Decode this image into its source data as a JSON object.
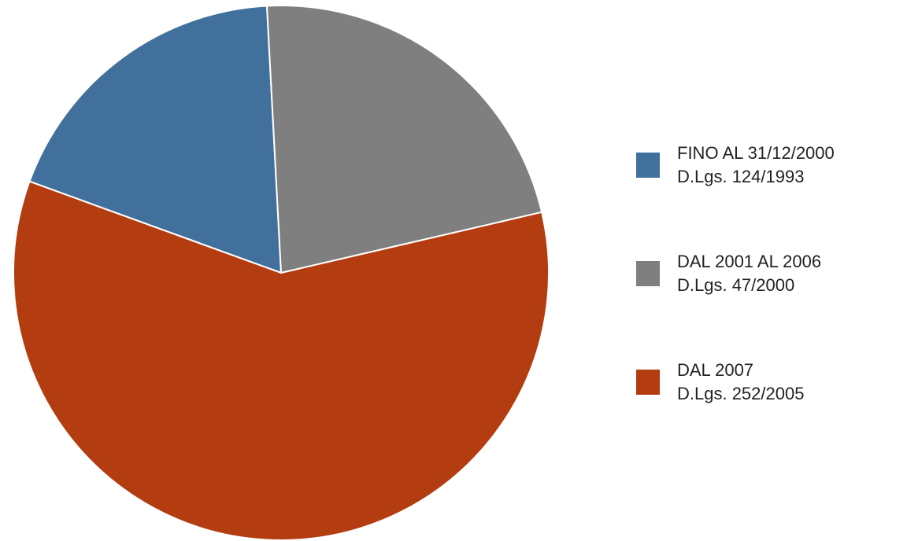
{
  "chart_data": {
    "type": "pie",
    "series": [
      {
        "name": "FINO AL 31/12/2000\nD.Lgs. 124/1993",
        "color": "#41709c",
        "value": 18.6
      },
      {
        "name": "DAL 2001 AL 2006\nD.Lgs. 47/2000",
        "color": "#7f7f7f",
        "value": 22.2
      },
      {
        "name": "DAL 2007\nD.Lgs. 252/2005",
        "color": "#b43c11",
        "value": 59.2
      }
    ],
    "legend": "right"
  }
}
